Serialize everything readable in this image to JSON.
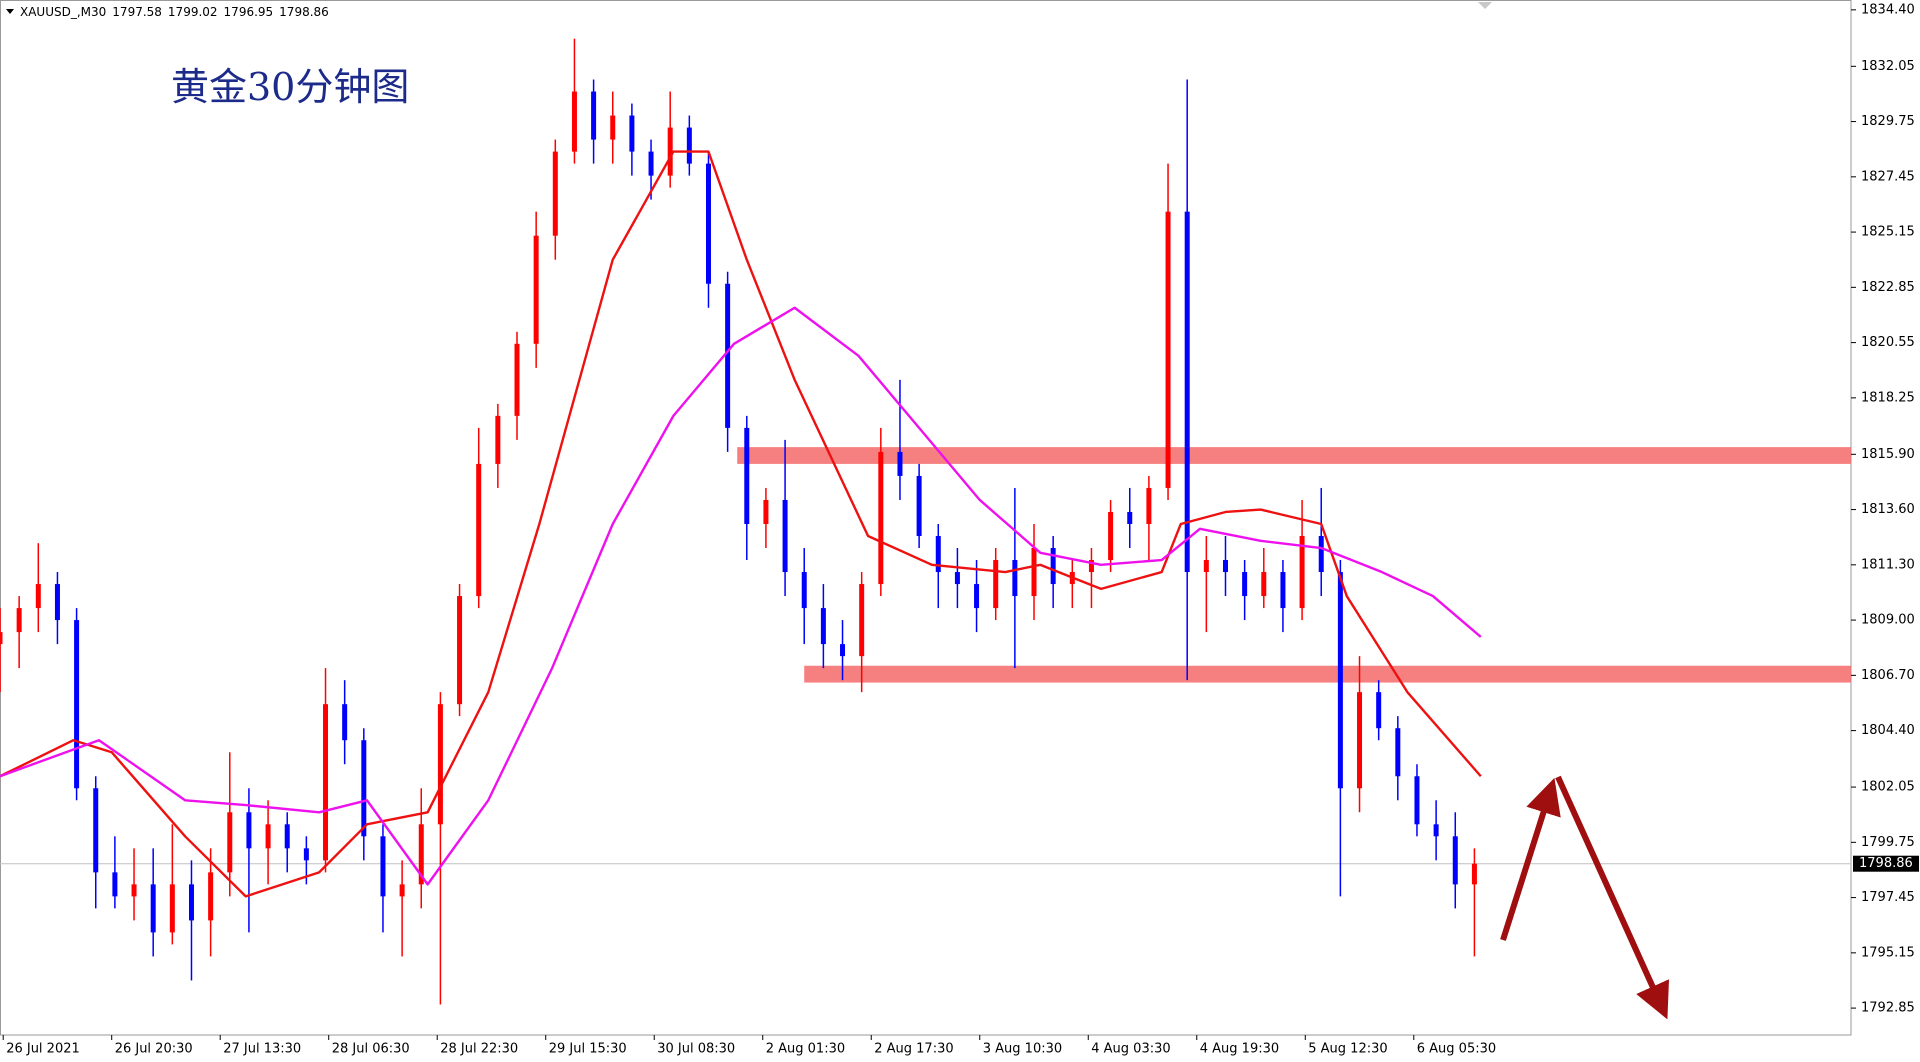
{
  "chart_data": {
    "type": "candlestick",
    "title": "黄金30分钟图",
    "header": {
      "symbol": "XAUUSD_,M30",
      "ohlc": [
        1797.58,
        1799.02,
        1796.95,
        1798.86
      ]
    },
    "last_price": 1798.86,
    "up_color": "#ff0000",
    "down_color": "#0000ff",
    "xlim": [
      0,
      580
    ],
    "ylim": [
      1791.73,
      1834.81
    ],
    "grid": false,
    "xticks": [
      {
        "value": 1,
        "label": "26 Jul 2021"
      },
      {
        "value": 35,
        "label": "26 Jul 20:30"
      },
      {
        "value": 69,
        "label": "27 Jul 13:30"
      },
      {
        "value": 103,
        "label": "28 Jul 06:30"
      },
      {
        "value": 137,
        "label": "28 Jul 22:30"
      },
      {
        "value": 171,
        "label": "29 Jul 15:30"
      },
      {
        "value": 205,
        "label": "30 Jul 08:30"
      },
      {
        "value": 239,
        "label": "2 Aug 01:30"
      },
      {
        "value": 273,
        "label": "2 Aug 17:30"
      },
      {
        "value": 307,
        "label": "3 Aug 10:30"
      },
      {
        "value": 341,
        "label": "4 Aug 03:30"
      },
      {
        "value": 375,
        "label": "4 Aug 19:30"
      },
      {
        "value": 409,
        "label": "5 Aug 12:30"
      },
      {
        "value": 443,
        "label": "6 Aug 05:30"
      }
    ],
    "yticks": [
      {
        "value": 1834.4,
        "label": "1834.40"
      },
      {
        "value": 1832.05,
        "label": "1832.05"
      },
      {
        "value": 1829.75,
        "label": "1829.75"
      },
      {
        "value": 1827.45,
        "label": "1827.45"
      },
      {
        "value": 1825.15,
        "label": "1825.15"
      },
      {
        "value": 1822.85,
        "label": "1822.85"
      },
      {
        "value": 1820.55,
        "label": "1820.55"
      },
      {
        "value": 1818.25,
        "label": "1818.25"
      },
      {
        "value": 1815.9,
        "label": "1815.90"
      },
      {
        "value": 1813.6,
        "label": "1813.60"
      },
      {
        "value": 1811.3,
        "label": "1811.30"
      },
      {
        "value": 1809,
        "label": "1809.00"
      },
      {
        "value": 1806.7,
        "label": "1806.70"
      },
      {
        "value": 1804.4,
        "label": "1804.40"
      },
      {
        "value": 1802.05,
        "label": "1802.05"
      },
      {
        "value": 1799.75,
        "label": "1799.75"
      },
      {
        "value": 1797.45,
        "label": "1797.45"
      },
      {
        "value": 1795.15,
        "label": "1795.15"
      },
      {
        "value": 1792.85,
        "label": "1792.85"
      }
    ],
    "x": [
      0,
      6,
      12,
      18,
      24,
      30,
      36,
      42,
      48,
      54,
      60,
      66,
      72,
      78,
      84,
      90,
      96,
      102,
      108,
      114,
      120,
      126,
      132,
      138,
      144,
      150,
      156,
      162,
      168,
      174,
      180,
      186,
      192,
      198,
      204,
      210,
      216,
      222,
      228,
      234,
      240,
      246,
      252,
      258,
      264,
      270,
      276,
      282,
      288,
      294,
      300,
      306,
      312,
      318,
      324,
      330,
      336,
      342,
      348,
      354,
      360,
      366,
      372,
      378,
      384,
      390,
      396,
      402,
      408,
      414,
      420,
      426,
      432,
      438,
      444,
      450,
      456,
      462
    ],
    "open": [
      1808.0,
      1808.5,
      1809.5,
      1810.5,
      1809.0,
      1802.0,
      1798.5,
      1797.5,
      1798.0,
      1796.0,
      1798.0,
      1796.5,
      1798.5,
      1801.0,
      1799.5,
      1800.5,
      1799.5,
      1799.0,
      1805.5,
      1804.0,
      1800.0,
      1797.5,
      1798.0,
      1800.5,
      1805.5,
      1810.0,
      1815.5,
      1817.5,
      1820.5,
      1825.0,
      1828.5,
      1831.0,
      1829.0,
      1830.0,
      1828.5,
      1827.5,
      1829.5,
      1828.0,
      1823.0,
      1817.0,
      1813.0,
      1814.0,
      1811.0,
      1809.5,
      1808.0,
      1807.5,
      1810.5,
      1816.0,
      1815.0,
      1812.5,
      1811.0,
      1810.5,
      1809.5,
      1811.5,
      1810.0,
      1812.0,
      1810.5,
      1811.0,
      1811.5,
      1813.5,
      1813.0,
      1814.5,
      1826.0,
      1811.0,
      1811.5,
      1811.0,
      1810.0,
      1811.0,
      1809.5,
      1812.5,
      1811.0,
      1802.0,
      1806.0,
      1804.5,
      1802.5,
      1800.5,
      1800.0,
      1798.0
    ],
    "high": [
      1809.5,
      1810.0,
      1812.2,
      1811.0,
      1809.5,
      1802.5,
      1800.0,
      1799.5,
      1799.5,
      1800.5,
      1799.0,
      1799.5,
      1803.5,
      1802.0,
      1801.5,
      1801.0,
      1800.0,
      1807.0,
      1806.5,
      1804.5,
      1800.5,
      1799.0,
      1802.0,
      1806.0,
      1810.5,
      1817.0,
      1818.0,
      1821.0,
      1826.0,
      1829.0,
      1833.2,
      1831.5,
      1831.0,
      1830.5,
      1829.0,
      1831.0,
      1830.0,
      1828.5,
      1823.5,
      1817.5,
      1814.5,
      1816.5,
      1812.0,
      1810.5,
      1809.0,
      1811.0,
      1817.0,
      1819.0,
      1815.5,
      1813.0,
      1812.0,
      1811.5,
      1812.0,
      1814.5,
      1813.0,
      1812.5,
      1811.5,
      1812.0,
      1814.0,
      1814.5,
      1815.0,
      1828.0,
      1831.5,
      1812.5,
      1812.5,
      1811.5,
      1812.0,
      1811.5,
      1814.0,
      1814.5,
      1811.5,
      1807.5,
      1806.5,
      1805.0,
      1803.0,
      1801.5,
      1801.0,
      1799.5
    ],
    "low": [
      1806.0,
      1807.0,
      1808.5,
      1808.0,
      1801.5,
      1797.0,
      1797.0,
      1796.5,
      1795.0,
      1795.5,
      1794.0,
      1795.0,
      1797.5,
      1796.0,
      1798.0,
      1798.5,
      1798.0,
      1798.5,
      1803.0,
      1799.0,
      1796.0,
      1795.0,
      1797.0,
      1793.0,
      1805.0,
      1809.5,
      1814.5,
      1816.5,
      1819.5,
      1824.0,
      1828.0,
      1828.0,
      1828.0,
      1827.5,
      1826.5,
      1827.0,
      1827.5,
      1822.0,
      1816.0,
      1811.5,
      1812.0,
      1810.0,
      1808.0,
      1807.0,
      1806.5,
      1806.0,
      1810.0,
      1814.0,
      1812.0,
      1809.5,
      1809.5,
      1808.5,
      1809.0,
      1807.0,
      1809.0,
      1809.5,
      1809.5,
      1809.5,
      1811.0,
      1812.0,
      1811.5,
      1814.0,
      1806.5,
      1808.5,
      1810.0,
      1809.0,
      1809.5,
      1808.5,
      1809.0,
      1810.0,
      1797.5,
      1801.0,
      1804.0,
      1801.5,
      1800.0,
      1799.0,
      1797.0,
      1795.0
    ],
    "close": [
      1808.5,
      1809.5,
      1810.5,
      1809.0,
      1802.0,
      1798.5,
      1797.5,
      1798.0,
      1796.0,
      1798.0,
      1796.5,
      1798.5,
      1801.0,
      1799.5,
      1800.5,
      1799.5,
      1799.0,
      1805.5,
      1804.0,
      1800.0,
      1797.5,
      1798.0,
      1800.5,
      1805.5,
      1810.0,
      1815.5,
      1817.5,
      1820.5,
      1825.0,
      1828.5,
      1831.0,
      1829.0,
      1830.0,
      1828.5,
      1827.5,
      1829.5,
      1828.0,
      1823.0,
      1817.0,
      1813.0,
      1814.0,
      1811.0,
      1809.5,
      1808.0,
      1807.5,
      1810.5,
      1816.0,
      1815.0,
      1812.5,
      1811.0,
      1810.5,
      1809.5,
      1811.5,
      1810.0,
      1812.0,
      1810.5,
      1811.0,
      1811.5,
      1813.5,
      1813.0,
      1814.5,
      1826.0,
      1811.0,
      1811.5,
      1811.0,
      1810.0,
      1811.0,
      1809.5,
      1812.5,
      1811.0,
      1802.0,
      1806.0,
      1804.5,
      1802.5,
      1800.5,
      1800.0,
      1798.0,
      1798.86
    ],
    "overlays": [
      {
        "color": "#ee1111",
        "x": [
          0,
          23,
          35,
          58,
          77,
          100,
          115,
          134,
          153,
          169,
          192,
          211,
          222,
          234,
          249,
          272,
          292,
          315,
          326,
          345,
          364,
          370,
          384,
          395,
          414,
          422,
          441,
          464
        ],
        "values": [
          1802.5,
          1804.0,
          1803.5,
          1800.0,
          1797.5,
          1798.5,
          1800.5,
          1801.0,
          1806.0,
          1813.0,
          1824.0,
          1828.5,
          1828.5,
          1824.0,
          1819.0,
          1812.5,
          1811.3,
          1811.0,
          1811.3,
          1810.3,
          1811.0,
          1813.0,
          1813.5,
          1813.6,
          1813.0,
          1810.0,
          1806.0,
          1802.5
        ]
      },
      {
        "color": "#ee11ee",
        "x": [
          0,
          31,
          58,
          77,
          100,
          115,
          134,
          153,
          173,
          192,
          211,
          230,
          249,
          269,
          288,
          307,
          326,
          345,
          364,
          376,
          395,
          414,
          433,
          449,
          464
        ],
        "values": [
          1802.5,
          1804.0,
          1801.5,
          1801.3,
          1801.0,
          1801.5,
          1798.0,
          1801.5,
          1807.0,
          1813.0,
          1817.5,
          1820.5,
          1822.0,
          1820.0,
          1817.0,
          1814.0,
          1811.8,
          1811.3,
          1811.5,
          1812.8,
          1812.3,
          1812.0,
          1811.0,
          1810.0,
          1808.3
        ]
      }
    ],
    "zones": [
      {
        "color": "#f46a6a",
        "from": 1816.2,
        "to": 1815.5,
        "x_start": 231
      },
      {
        "color": "#f46a6a",
        "from": 1807.1,
        "to": 1806.4,
        "x_start": 252
      }
    ]
  }
}
